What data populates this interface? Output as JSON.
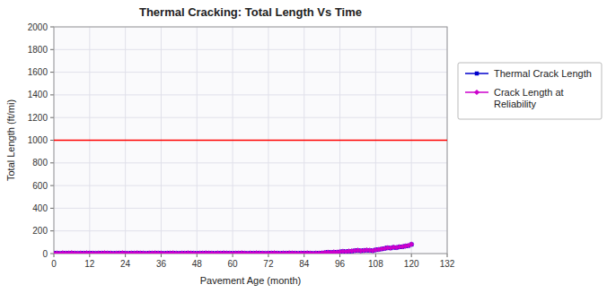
{
  "chart_data": {
    "type": "line",
    "title": "Thermal Cracking:  Total Length Vs Time",
    "x_label": "Pavement Age (month)",
    "y_label": "Total Length (ft/mi)",
    "xlim": [
      0,
      132
    ],
    "ylim": [
      0,
      2000
    ],
    "xticks": [
      0,
      12,
      24,
      36,
      48,
      60,
      72,
      84,
      96,
      108,
      120,
      132
    ],
    "yticks": [
      0,
      200,
      400,
      600,
      800,
      1000,
      1200,
      1400,
      1600,
      1800,
      2000
    ],
    "grid": true,
    "legend": "right",
    "x": [
      0,
      1,
      2,
      3,
      4,
      5,
      6,
      7,
      8,
      9,
      10,
      11,
      12,
      13,
      14,
      15,
      16,
      17,
      18,
      19,
      20,
      21,
      22,
      23,
      24,
      25,
      26,
      27,
      28,
      29,
      30,
      31,
      32,
      33,
      34,
      35,
      36,
      37,
      38,
      39,
      40,
      41,
      42,
      43,
      44,
      45,
      46,
      47,
      48,
      49,
      50,
      51,
      52,
      53,
      54,
      55,
      56,
      57,
      58,
      59,
      60,
      61,
      62,
      63,
      64,
      65,
      66,
      67,
      68,
      69,
      70,
      71,
      72,
      73,
      74,
      75,
      76,
      77,
      78,
      79,
      80,
      81,
      82,
      83,
      84,
      85,
      86,
      87,
      88,
      89,
      90,
      91,
      92,
      93,
      94,
      95,
      96,
      97,
      98,
      99,
      100,
      101,
      102,
      103,
      104,
      105,
      106,
      107,
      108,
      109,
      110,
      111,
      112,
      113,
      114,
      115,
      116,
      117,
      118,
      119,
      120
    ],
    "series": [
      {
        "name": "Thermal Crack Length",
        "color": "#0000cc",
        "marker": "square",
        "values": [
          2,
          3,
          1,
          4,
          2,
          3,
          5,
          2,
          1,
          3,
          2,
          4,
          3,
          2,
          1,
          3,
          2,
          4,
          3,
          2,
          1,
          2,
          3,
          4,
          2,
          1,
          3,
          2,
          4,
          3,
          2,
          1,
          3,
          2,
          4,
          3,
          2,
          1,
          2,
          3,
          4,
          2,
          1,
          3,
          2,
          4,
          3,
          2,
          1,
          2,
          3,
          4,
          3,
          2,
          1,
          3,
          2,
          4,
          3,
          2,
          1,
          2,
          3,
          4,
          2,
          1,
          3,
          2,
          4,
          3,
          2,
          1,
          2,
          3,
          4,
          2,
          1,
          3,
          2,
          4,
          3,
          2,
          1,
          2,
          3,
          4,
          2,
          1,
          3,
          2,
          4,
          8,
          10,
          9,
          12,
          11,
          15,
          18,
          16,
          20,
          22,
          25,
          28,
          24,
          26,
          30,
          28,
          25,
          32,
          35,
          40,
          45,
          50,
          48,
          55,
          52,
          58,
          60,
          65,
          70,
          80
        ]
      },
      {
        "name": "Crack Length at\nReliability",
        "color": "#cc00cc",
        "marker": "diamond",
        "values": [
          3,
          4,
          2,
          5,
          3,
          4,
          6,
          3,
          2,
          4,
          3,
          5,
          4,
          3,
          2,
          4,
          3,
          5,
          4,
          3,
          2,
          3,
          4,
          5,
          3,
          2,
          4,
          3,
          5,
          4,
          3,
          2,
          4,
          3,
          5,
          4,
          3,
          2,
          3,
          4,
          5,
          3,
          2,
          4,
          3,
          5,
          4,
          3,
          2,
          3,
          4,
          5,
          4,
          3,
          2,
          4,
          3,
          5,
          4,
          3,
          2,
          3,
          4,
          5,
          3,
          2,
          4,
          3,
          5,
          4,
          3,
          2,
          3,
          4,
          5,
          3,
          2,
          4,
          3,
          5,
          4,
          3,
          2,
          3,
          4,
          5,
          3,
          2,
          4,
          3,
          5,
          9,
          11,
          10,
          13,
          12,
          16,
          19,
          17,
          21,
          23,
          26,
          29,
          25,
          27,
          31,
          29,
          26,
          33,
          36,
          41,
          46,
          51,
          49,
          56,
          53,
          59,
          61,
          66,
          71,
          82
        ]
      }
    ],
    "reference_line": {
      "value": 1000,
      "color": "#ff0000"
    }
  }
}
